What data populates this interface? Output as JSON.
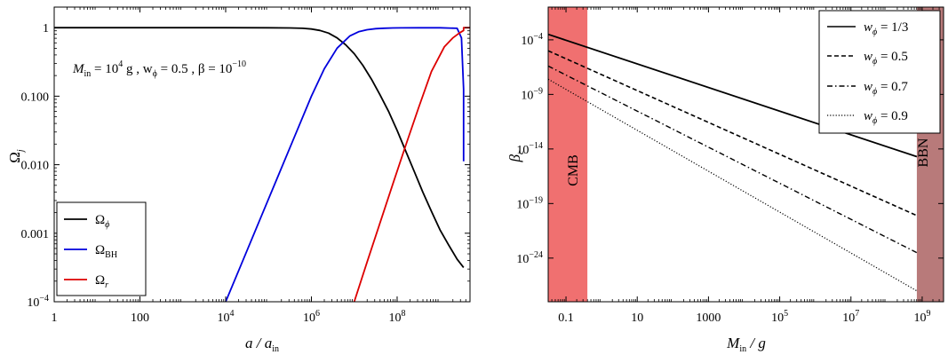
{
  "chart_data": [
    {
      "type": "line",
      "title": "",
      "xlabel": "a / a_in",
      "ylabel": "Ω_j",
      "xscale": "log",
      "yscale": "log",
      "xlim_log10": [
        0,
        9.7
      ],
      "ylim_log10": [
        -4,
        0.3
      ],
      "x_tick_labels": [
        "1",
        "100",
        "10^4",
        "10^6",
        "10^8"
      ],
      "x_tick_values_log10": [
        0,
        2,
        4,
        6,
        8
      ],
      "y_tick_labels": [
        "10^-4",
        "0.001",
        "0.010",
        "0.100",
        "1"
      ],
      "y_tick_values_log10": [
        -4,
        -3,
        -2,
        -1,
        0
      ],
      "annotation": {
        "parts": [
          "M",
          "in",
          " = 10",
          "4",
          " g ,   w",
          "ϕ",
          " = 0.5 ,   β = 10",
          "−10"
        ]
      },
      "legend": {
        "placement": "bottom-left",
        "entries": [
          {
            "base": "Ω",
            "sub": "ϕ",
            "color": "#000000"
          },
          {
            "base": "Ω",
            "sub": "BH",
            "color": "#0000dd"
          },
          {
            "base": "Ω",
            "sub": "r",
            "color": "#dd0000"
          }
        ]
      },
      "series": [
        {
          "key": "phi",
          "color": "#000000",
          "x_log10": [
            0,
            2,
            4,
            5,
            5.5,
            5.8,
            6.0,
            6.2,
            6.4,
            6.6,
            6.8,
            7.0,
            7.2,
            7.4,
            7.6,
            7.8,
            8.0,
            8.2,
            8.4,
            8.6,
            8.8,
            9.0,
            9.2,
            9.4,
            9.55
          ],
          "y_log10": [
            0,
            0,
            0,
            -0.002,
            -0.005,
            -0.01,
            -0.02,
            -0.04,
            -0.08,
            -0.15,
            -0.25,
            -0.38,
            -0.55,
            -0.75,
            -0.98,
            -1.22,
            -1.5,
            -1.8,
            -2.1,
            -2.4,
            -2.68,
            -2.95,
            -3.17,
            -3.38,
            -3.5
          ]
        },
        {
          "key": "BH",
          "color": "#0000dd",
          "x_log10": [
            4.0,
            4.4,
            4.8,
            5.2,
            5.6,
            6.0,
            6.3,
            6.6,
            6.9,
            7.1,
            7.3,
            7.5,
            7.7,
            7.9,
            8.1,
            8.5,
            9.0,
            9.4,
            9.5,
            9.55,
            9.55
          ],
          "y_log10": [
            -4.0,
            -3.4,
            -2.8,
            -2.2,
            -1.6,
            -1.0,
            -0.6,
            -0.3,
            -0.12,
            -0.06,
            -0.03,
            -0.015,
            -0.008,
            -0.005,
            -0.003,
            -0.002,
            -0.002,
            -0.01,
            -0.15,
            -0.9,
            -1.95
          ]
        },
        {
          "key": "r",
          "color": "#dd0000",
          "x_log10": [
            7.0,
            7.3,
            7.6,
            7.9,
            8.2,
            8.5,
            8.8,
            9.1,
            9.3,
            9.45,
            9.55,
            9.55,
            9.7
          ],
          "y_log10": [
            -4.0,
            -3.42,
            -2.85,
            -2.28,
            -1.72,
            -1.17,
            -0.64,
            -0.28,
            -0.15,
            -0.08,
            -0.04,
            0.0,
            0.0
          ]
        }
      ]
    },
    {
      "type": "line",
      "title": "",
      "xlabel": "M_in / g",
      "ylabel": "β_c",
      "xscale": "log",
      "yscale": "log",
      "xlim_log10": [
        -1.5,
        9.6
      ],
      "ylim_log10": [
        -28,
        -1
      ],
      "x_tick_labels": [
        "0.1",
        "10",
        "1000",
        "10^5",
        "10^7",
        "10^9"
      ],
      "x_tick_values_log10": [
        -1,
        1,
        3,
        5,
        7,
        9
      ],
      "y_tick_labels": [
        "10^-4",
        "10^-9",
        "10^-14",
        "10^-19",
        "10^-24"
      ],
      "y_tick_values_log10": [
        -4,
        -9,
        -14,
        -19,
        -24
      ],
      "bands": [
        {
          "label": "CMB",
          "x_log10": [
            -1.5,
            -0.4
          ],
          "color": "#f07070"
        },
        {
          "label": "BBN",
          "x_log10": [
            8.85,
            9.6
          ],
          "color": "#b87a7a"
        }
      ],
      "legend": {
        "placement": "top-right",
        "entries": [
          {
            "label": "w_ϕ = 1/3",
            "value": "1/3",
            "dash": "solid"
          },
          {
            "label": "w_ϕ = 0.5",
            "value": "0.5",
            "dash": "dashed"
          },
          {
            "label": "w_ϕ = 0.7",
            "value": "0.7",
            "dash": "dashdot"
          },
          {
            "label": "w_ϕ = 0.9",
            "value": "0.9",
            "dash": "dotted"
          }
        ]
      },
      "series": [
        {
          "name": "w_ϕ = 1/3",
          "dash": "solid",
          "x_log10": [
            -1.5,
            8.85
          ],
          "y_log10": [
            -3.5,
            -14.7
          ]
        },
        {
          "name": "w_ϕ = 0.5",
          "dash": "dashed",
          "x_log10": [
            -1.5,
            8.85
          ],
          "y_log10": [
            -5.0,
            -20.1
          ]
        },
        {
          "name": "w_ϕ = 0.7",
          "dash": "dashdot",
          "x_log10": [
            -1.5,
            8.85
          ],
          "y_log10": [
            -6.4,
            -23.5
          ]
        },
        {
          "name": "w_ϕ = 0.9",
          "dash": "dotted",
          "x_log10": [
            -1.5,
            8.85
          ],
          "y_log10": [
            -7.6,
            -27.0
          ]
        }
      ]
    }
  ]
}
